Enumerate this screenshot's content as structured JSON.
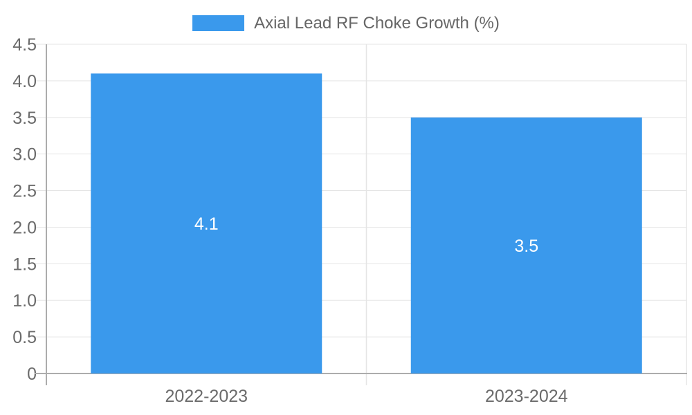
{
  "legend": {
    "label": "Axial Lead RF Choke Growth (%)"
  },
  "colors": {
    "bar": "#3A99EC",
    "grid": "#E5E5E5",
    "axis": "#ACACAC",
    "tick_text": "#6B6B6B",
    "legend_text": "#666666",
    "value_text": "#FFFFFF",
    "background": "#FFFFFF"
  },
  "chart_data": {
    "type": "bar",
    "title": "Axial Lead RF Choke Growth (%)",
    "categories": [
      "2022-2023",
      "2023-2024"
    ],
    "values": [
      4.1,
      3.5
    ],
    "value_labels": [
      "4.1",
      "3.5"
    ],
    "xlabel": "",
    "ylabel": "",
    "ylim": [
      0,
      4.5
    ],
    "ytick_step": 0.5,
    "ytick_labels": [
      "0",
      "0.5",
      "1.0",
      "1.5",
      "2.0",
      "2.5",
      "3.0",
      "3.5",
      "4.0",
      "4.5"
    ],
    "grid": true,
    "legend_position": "top-center",
    "value_label_position": "center"
  }
}
